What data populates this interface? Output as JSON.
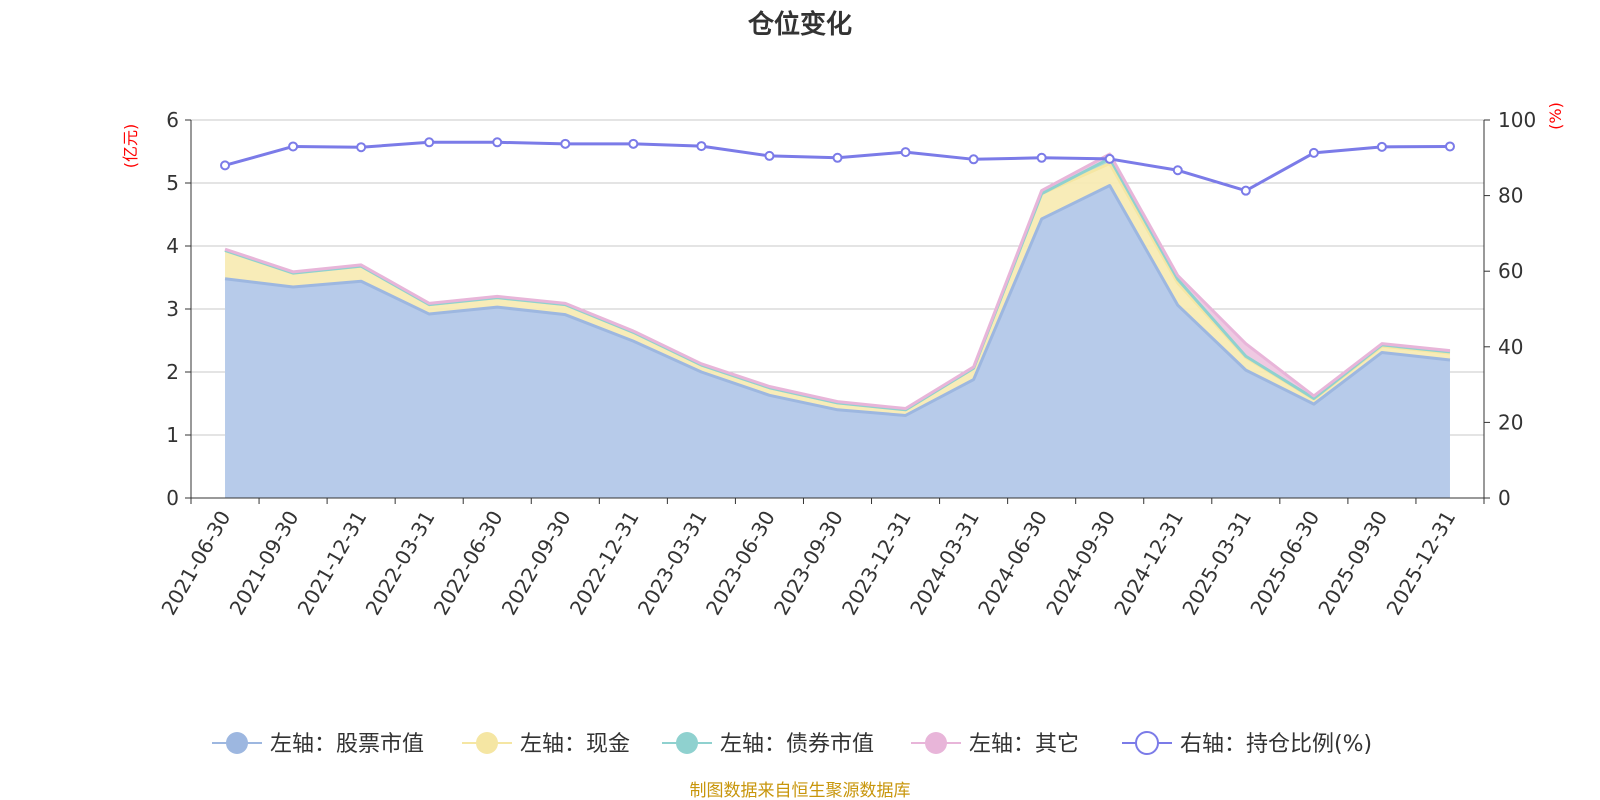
{
  "chart_data": {
    "type": "area",
    "title": "仓位变化",
    "left_axis_unit": "(亿元)",
    "right_axis_unit": "(%)",
    "x": [
      "2021-06-30",
      "2021-09-30",
      "2021-12-31",
      "2022-03-31",
      "2022-06-30",
      "2022-09-30",
      "2022-12-31",
      "2023-03-31",
      "2023-06-30",
      "2023-09-30",
      "2023-12-31",
      "2024-03-31",
      "2024-06-30",
      "2024-09-30",
      "2024-12-31",
      "2025-03-31",
      "2025-06-30",
      "2025-09-30",
      "2025-12-31"
    ],
    "left_ylim": [
      0,
      6
    ],
    "left_yticks": [
      "0",
      "1",
      "2",
      "3",
      "4",
      "5",
      "6"
    ],
    "right_ylim": [
      0,
      100
    ],
    "right_yticks": [
      "0",
      "20",
      "40",
      "60",
      "80",
      "100"
    ],
    "grid": true,
    "legend_position": "bottom",
    "series": [
      {
        "name": "左轴：股票市值",
        "axis": "left",
        "stack": true,
        "color": "#9db7e0",
        "fill": "#b7cbea",
        "values": [
          3.48,
          3.35,
          3.44,
          2.92,
          3.03,
          2.91,
          2.49,
          2.0,
          1.63,
          1.4,
          1.31,
          1.88,
          4.43,
          4.96,
          3.06,
          2.03,
          1.49,
          2.31,
          2.19
        ]
      },
      {
        "name": "左轴：现金",
        "axis": "left",
        "stack": true,
        "color": "#f5e6a3",
        "fill": "#f8ebb4",
        "values": [
          0.45,
          0.22,
          0.24,
          0.15,
          0.15,
          0.16,
          0.14,
          0.11,
          0.12,
          0.11,
          0.09,
          0.18,
          0.4,
          0.35,
          0.35,
          0.2,
          0.08,
          0.1,
          0.11
        ]
      },
      {
        "name": "左轴：债券市值",
        "axis": "left",
        "stack": true,
        "color": "#8fd1cf",
        "fill": "#a4d9d8",
        "values": [
          0,
          0,
          0,
          0,
          0,
          0,
          0,
          0,
          0,
          0,
          0,
          0,
          0,
          0.08,
          0.06,
          0.02,
          0.01,
          0.02,
          0.02
        ]
      },
      {
        "name": "左轴：其它",
        "axis": "left",
        "stack": true,
        "color": "#e8b5d9",
        "fill": "#eec6e0",
        "values": [
          0.02,
          0.02,
          0.02,
          0.02,
          0.02,
          0.02,
          0.02,
          0.02,
          0.02,
          0.02,
          0.02,
          0.02,
          0.05,
          0.07,
          0.06,
          0.2,
          0.04,
          0.02,
          0.02
        ]
      },
      {
        "name": "右轴：持仓比例(%)",
        "axis": "right",
        "stack": false,
        "color": "#7b7be8",
        "values": [
          88.0,
          93.0,
          92.8,
          94.1,
          94.1,
          93.7,
          93.7,
          93.1,
          90.5,
          90.0,
          91.5,
          89.6,
          90.0,
          89.7,
          86.7,
          81.3,
          91.3,
          92.9,
          93.0
        ]
      }
    ],
    "source": "制图数据来自恒生聚源数据库"
  }
}
